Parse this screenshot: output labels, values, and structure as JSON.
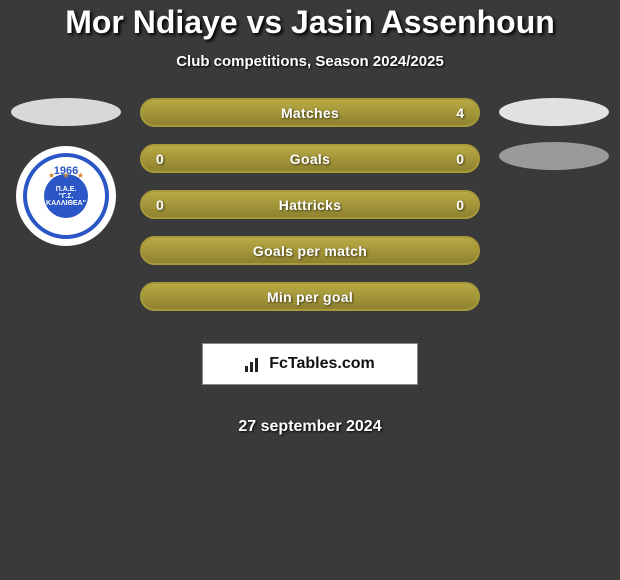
{
  "title": "Mor Ndiaye vs Jasin Assenhoun",
  "subtitle": "Club competitions, Season 2024/2025",
  "date": "27 september 2024",
  "brand": "FcTables.com",
  "badge": {
    "year": "1966",
    "line1": "Π.Α.Ε.",
    "line2": "\"Γ.Σ.",
    "line3": "ΚΑΛΛΙΘΕΑ\""
  },
  "colors": {
    "background": "#3a3a3a",
    "pill_bg_top": "#b8aa44",
    "pill_bg_bottom": "#8f8230",
    "pill_border": "#a89a3a",
    "badge_blue": "#2b56c6",
    "ellipse_left": "#d8d8d8",
    "ellipse_right1": "#e2e2e2",
    "ellipse_right2": "#9a9a9a"
  },
  "rows": [
    {
      "left": "",
      "label": "Matches",
      "right": "4"
    },
    {
      "left": "0",
      "label": "Goals",
      "right": "0"
    },
    {
      "left": "0",
      "label": "Hattricks",
      "right": "0"
    },
    {
      "left": "",
      "label": "Goals per match",
      "right": ""
    },
    {
      "left": "",
      "label": "Min per goal",
      "right": ""
    }
  ]
}
